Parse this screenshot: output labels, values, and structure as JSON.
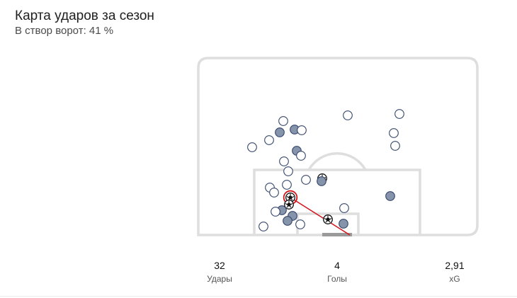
{
  "header": {
    "title": "Карта ударов за сезон",
    "subtitle": "В створ ворот: 41 %"
  },
  "colors": {
    "pitch_line": "#dedede",
    "shot_miss_fill": "#ffffff",
    "shot_on_target_fill": "#8593ab",
    "shot_stroke": "#34466a",
    "goal_marker": "#111111",
    "highlight": "#d3161c"
  },
  "shots": [
    {
      "result": "miss"
    },
    {
      "result": "miss"
    },
    {
      "result": "miss"
    },
    {
      "result": "miss"
    },
    {
      "result": "on_target"
    },
    {
      "result": "on_target"
    },
    {
      "result": "miss"
    },
    {
      "result": "miss"
    },
    {
      "result": "miss"
    },
    {
      "result": "miss"
    },
    {
      "result": "miss"
    },
    {
      "result": "on_target"
    },
    {
      "result": "miss"
    },
    {
      "result": "miss"
    },
    {
      "result": "miss"
    },
    {
      "result": "goal"
    },
    {
      "result": "on_target"
    },
    {
      "result": "miss"
    },
    {
      "result": "miss"
    },
    {
      "result": "miss"
    },
    {
      "result": "on_target"
    },
    {
      "result": "goal",
      "highlighted": true
    },
    {
      "result": "goal"
    },
    {
      "result": "on_target"
    },
    {
      "result": "miss"
    },
    {
      "result": "miss"
    },
    {
      "result": "on_target"
    },
    {
      "result": "on_target"
    },
    {
      "result": "miss"
    },
    {
      "result": "goal"
    },
    {
      "result": "on_target"
    },
    {
      "result": "miss"
    }
  ],
  "stats": [
    {
      "value": "32",
      "label": "Удары"
    },
    {
      "value": "4",
      "label": "Голы"
    },
    {
      "value": "2,91",
      "label": "xG"
    }
  ]
}
